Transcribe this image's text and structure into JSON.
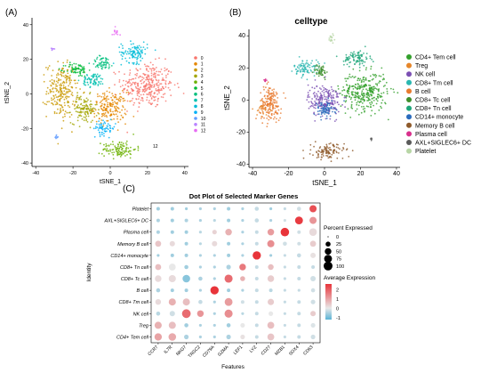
{
  "panel_labels": [
    "(A)",
    "(B)",
    "(C)"
  ],
  "tsne_a": {
    "xlabel": "tSNE_1",
    "ylabel": "tSNE_2",
    "x_ticks": [
      -40,
      -20,
      0,
      20,
      40
    ],
    "y_ticks": [
      -40,
      -20,
      0,
      20,
      40
    ],
    "legend": [
      "0",
      "1",
      "2",
      "3",
      "4",
      "5",
      "6",
      "7",
      "8",
      "9",
      "10",
      "11",
      "12"
    ],
    "colors": [
      "#f8766d",
      "#e58700",
      "#c99800",
      "#a3a500",
      "#6bb100",
      "#00ba38",
      "#00bf7d",
      "#00c0af",
      "#00bcd8",
      "#00b0f6",
      "#619cff",
      "#b983ff",
      "#e76bf3"
    ],
    "label_12": "12"
  },
  "tsne_b": {
    "title": "celltype",
    "xlabel": "tSNE_1",
    "ylabel": "tSNE_2",
    "x_ticks": [
      -40,
      -20,
      0,
      20,
      40
    ],
    "y_ticks": [
      -40,
      -20,
      0,
      20,
      40
    ],
    "legend": [
      "CD4+ Tem cell",
      "Treg",
      "NK cell",
      "CD8+ Tm cell",
      "B cell",
      "CD8+ Tc cell",
      "CD8+ Tn cell",
      "CD14+ monocyte",
      "Memory B cell",
      "Plasma cell",
      "AXL+SIGLEC6+ DC",
      "Platelet"
    ],
    "colors": [
      "#33a02c",
      "#e6862a",
      "#7b4fb3",
      "#2ab7b0",
      "#e87b2f",
      "#3f8f2c",
      "#1fa67a",
      "#2a6bbd",
      "#8e5a2b",
      "#d8308c",
      "#5a5a5a",
      "#b8d6a6"
    ]
  },
  "chart_data": [
    {
      "type": "scatter",
      "panel": "A",
      "xlabel": "tSNE_1",
      "ylabel": "tSNE_2",
      "xlim": [
        -42,
        42
      ],
      "ylim": [
        -42,
        44
      ],
      "legend_placement": "right",
      "series": [
        {
          "name": "0",
          "color": "#f8766d",
          "cx": 20,
          "cy": 5,
          "rx": 14,
          "ry": 13,
          "n": 320
        },
        {
          "name": "1",
          "color": "#e58700",
          "cx": 0,
          "cy": -8,
          "rx": 9,
          "ry": 9,
          "n": 180
        },
        {
          "name": "2",
          "color": "#c99800",
          "cx": -26,
          "cy": 2,
          "rx": 8,
          "ry": 16,
          "n": 230
        },
        {
          "name": "3",
          "color": "#a3a500",
          "cx": -14,
          "cy": -9,
          "rx": 7,
          "ry": 8,
          "n": 120
        },
        {
          "name": "4",
          "color": "#6bb100",
          "cx": 5,
          "cy": -32,
          "rx": 9,
          "ry": 5,
          "n": 110
        },
        {
          "name": "5",
          "color": "#00ba38",
          "cx": -18,
          "cy": 14,
          "rx": 6,
          "ry": 4,
          "n": 70
        },
        {
          "name": "6",
          "color": "#00bf7d",
          "cx": -4,
          "cy": 18,
          "rx": 6,
          "ry": 4,
          "n": 60
        },
        {
          "name": "7",
          "color": "#00c0af",
          "cx": -9,
          "cy": 8,
          "rx": 6,
          "ry": 4,
          "n": 70
        },
        {
          "name": "8",
          "color": "#00bcd8",
          "cx": 13,
          "cy": 24,
          "rx": 7,
          "ry": 6,
          "n": 110
        },
        {
          "name": "9",
          "color": "#00b0f6",
          "cx": -3,
          "cy": -20,
          "rx": 6,
          "ry": 4,
          "n": 60
        },
        {
          "name": "10",
          "color": "#619cff",
          "cx": -29,
          "cy": -25,
          "rx": 1,
          "ry": 1,
          "n": 8
        },
        {
          "name": "11",
          "color": "#b983ff",
          "cx": -31,
          "cy": 26,
          "rx": 1,
          "ry": 1,
          "n": 8
        },
        {
          "name": "12",
          "color": "#e76bf3",
          "cx": 3,
          "cy": 36,
          "rx": 2,
          "ry": 3,
          "n": 14
        }
      ]
    },
    {
      "type": "scatter",
      "panel": "B",
      "title": "celltype",
      "xlabel": "tSNE_1",
      "ylabel": "tSNE_2",
      "xlim": [
        -42,
        42
      ],
      "ylim": [
        -42,
        44
      ],
      "legend_placement": "right",
      "series": [
        {
          "name": "CD4+ Tem cell",
          "color": "#33a02c",
          "cx": 22,
          "cy": 5,
          "rx": 13,
          "ry": 12,
          "n": 320
        },
        {
          "name": "Treg",
          "color": "#e6862a",
          "cx": -34,
          "cy": -5,
          "rx": 4,
          "ry": 5,
          "n": 40
        },
        {
          "name": "NK cell",
          "color": "#7b4fb3",
          "cx": 0,
          "cy": 0,
          "rx": 9,
          "ry": 10,
          "n": 200
        },
        {
          "name": "CD8+ Tm cell",
          "color": "#2ab7b0",
          "cx": -10,
          "cy": 20,
          "rx": 7,
          "ry": 5,
          "n": 90
        },
        {
          "name": "B cell",
          "color": "#e87b2f",
          "cx": -30,
          "cy": -2,
          "rx": 6,
          "ry": 11,
          "n": 160
        },
        {
          "name": "CD8+ Tc cell",
          "color": "#3f8f2c",
          "cx": -2,
          "cy": 18,
          "rx": 4,
          "ry": 4,
          "n": 50
        },
        {
          "name": "CD8+ Tn cell",
          "color": "#1fa67a",
          "cx": 18,
          "cy": 26,
          "rx": 7,
          "ry": 5,
          "n": 90
        },
        {
          "name": "CD14+ monocyte",
          "color": "#2a6bbd",
          "cx": 0,
          "cy": -6,
          "rx": 6,
          "ry": 5,
          "n": 80
        },
        {
          "name": "Memory B cell",
          "color": "#8e5a2b",
          "cx": 2,
          "cy": -32,
          "rx": 9,
          "ry": 5,
          "n": 110
        },
        {
          "name": "Plasma cell",
          "color": "#d8308c",
          "cx": -33,
          "cy": 12,
          "rx": 1,
          "ry": 1,
          "n": 8
        },
        {
          "name": "AXL+SIGLEC6+ DC",
          "color": "#5a5a5a",
          "cx": 26,
          "cy": -24,
          "rx": 1,
          "ry": 1,
          "n": 6
        },
        {
          "name": "Platelet",
          "color": "#b8d6a6",
          "cx": 4,
          "cy": 38,
          "rx": 2,
          "ry": 3,
          "n": 16
        }
      ]
    },
    {
      "type": "dot",
      "panel": "C",
      "title": "Dot Plot of Selected Marker Genes",
      "xlabel": "Features",
      "ylabel": "Identity",
      "genes": [
        "CCR7",
        "IL7R",
        "NKG7",
        "TRGC2",
        "CD79A",
        "GZMA",
        "LEF1",
        "LYZ",
        "CD27",
        "MZB1",
        "SOX4",
        "CD63"
      ],
      "identities": [
        "Platelet",
        "AXL+SIGLEC6+ DC",
        "Plasma cell",
        "Memory B cell",
        "CD14+ monocyte",
        "CD8+ Tn cell",
        "CD8+ Tc cell",
        "B cell",
        "CD8+ Tm cell",
        "NK cell",
        "Treg",
        "CD4+ Tem cell"
      ],
      "pct_expressed": [
        [
          10,
          10,
          5,
          5,
          5,
          10,
          5,
          15,
          5,
          5,
          15,
          60
        ],
        [
          10,
          10,
          10,
          5,
          5,
          10,
          5,
          15,
          5,
          5,
          75,
          60
        ],
        [
          10,
          10,
          10,
          5,
          20,
          50,
          5,
          10,
          50,
          90,
          10,
          70
        ],
        [
          40,
          30,
          10,
          5,
          30,
          10,
          5,
          10,
          60,
          15,
          10,
          40
        ],
        [
          5,
          10,
          10,
          5,
          5,
          10,
          5,
          85,
          5,
          5,
          15,
          30
        ],
        [
          40,
          55,
          15,
          5,
          5,
          20,
          50,
          10,
          35,
          5,
          10,
          10
        ],
        [
          50,
          60,
          70,
          15,
          5,
          80,
          25,
          10,
          50,
          5,
          10,
          30
        ],
        [
          15,
          10,
          10,
          5,
          85,
          10,
          5,
          10,
          10,
          5,
          5,
          15
        ],
        [
          35,
          60,
          60,
          15,
          5,
          75,
          10,
          10,
          45,
          5,
          10,
          20
        ],
        [
          15,
          30,
          95,
          50,
          5,
          80,
          5,
          10,
          20,
          5,
          10,
          30
        ],
        [
          60,
          60,
          15,
          5,
          5,
          15,
          20,
          10,
          55,
          5,
          10,
          20
        ],
        [
          65,
          70,
          20,
          5,
          5,
          20,
          20,
          10,
          55,
          5,
          10,
          20
        ]
      ],
      "avg_expression": [
        [
          -0.6,
          -0.6,
          -0.6,
          -0.5,
          -0.5,
          -0.6,
          -0.5,
          -0.3,
          -0.6,
          -0.3,
          -0.2,
          2.2
        ],
        [
          -0.5,
          -0.6,
          -0.5,
          -0.5,
          -0.4,
          -0.6,
          -0.5,
          -0.3,
          -0.5,
          -0.2,
          2.5,
          1.2
        ],
        [
          -0.5,
          -0.6,
          -0.6,
          -0.4,
          0.3,
          0.8,
          -0.5,
          -0.3,
          1.1,
          2.8,
          -0.2,
          0.2
        ],
        [
          0.5,
          0.2,
          -0.6,
          -0.4,
          0.2,
          -0.6,
          -0.5,
          -0.3,
          1.3,
          -0.2,
          -0.2,
          0.4
        ],
        [
          -0.6,
          -0.6,
          -0.6,
          -0.5,
          -0.5,
          -0.6,
          -0.5,
          2.8,
          -0.6,
          -0.3,
          -0.3,
          0.1
        ],
        [
          0.6,
          0.0,
          -0.6,
          -0.5,
          -0.5,
          -0.5,
          1.6,
          -0.3,
          0.6,
          -0.3,
          -0.3,
          -0.3
        ],
        [
          0.2,
          0.2,
          -0.8,
          -0.5,
          -0.5,
          1.8,
          0.8,
          -0.3,
          0.4,
          -0.3,
          -0.3,
          -0.2
        ],
        [
          -0.5,
          -0.6,
          -0.6,
          -0.5,
          2.6,
          -0.6,
          -0.5,
          -0.3,
          -0.4,
          -0.3,
          -0.3,
          -0.2
        ],
        [
          0.2,
          0.8,
          0.6,
          -0.3,
          -0.5,
          1.1,
          -0.2,
          -0.3,
          0.4,
          -0.3,
          -0.3,
          -0.2
        ],
        [
          -0.4,
          -0.2,
          1.8,
          1.2,
          -0.5,
          1.3,
          -0.4,
          -0.3,
          0.0,
          -0.3,
          -0.3,
          0.4
        ],
        [
          0.8,
          0.6,
          -0.6,
          -0.5,
          -0.5,
          -0.6,
          0.0,
          -0.3,
          0.6,
          -0.3,
          -0.3,
          -0.1
        ],
        [
          1.0,
          0.9,
          -0.5,
          -0.5,
          -0.5,
          -0.5,
          0.1,
          -0.3,
          0.5,
          -0.3,
          -0.3,
          -0.2
        ]
      ],
      "size_legend_title": "Percent Expressed",
      "size_legend_values": [
        0,
        25,
        50,
        75,
        100
      ],
      "color_legend_title": "Average Expression",
      "color_legend_ticks": [
        2,
        1,
        0,
        -1
      ],
      "color_range": [
        -1.2,
        2.6
      ],
      "color_low": "#5ab4d6",
      "color_mid": "#e8e8e8",
      "color_high": "#e8343a"
    }
  ]
}
